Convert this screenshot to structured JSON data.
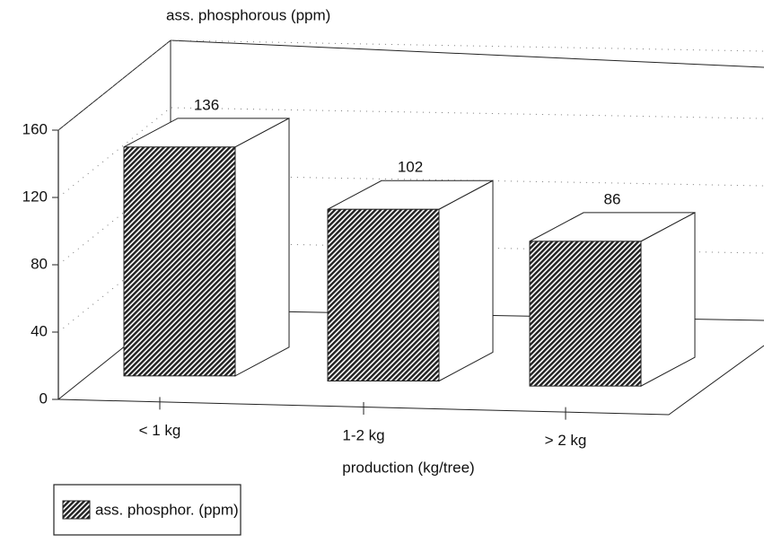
{
  "chart_data": {
    "type": "bar3d",
    "y_label": "ass. phosphorous (ppm)",
    "x_label": "production (kg/tree)",
    "categories": [
      "< 1 kg",
      "1-2 kg",
      "> 2 kg"
    ],
    "series": [
      {
        "name": "ass. phosphor. (ppm)",
        "color": "#222222",
        "values": [
          136,
          102,
          86
        ]
      }
    ],
    "ylim": [
      0,
      160
    ],
    "yticks": [
      0,
      40,
      80,
      120,
      160
    ],
    "grid": true,
    "legend": "bottom-left"
  }
}
